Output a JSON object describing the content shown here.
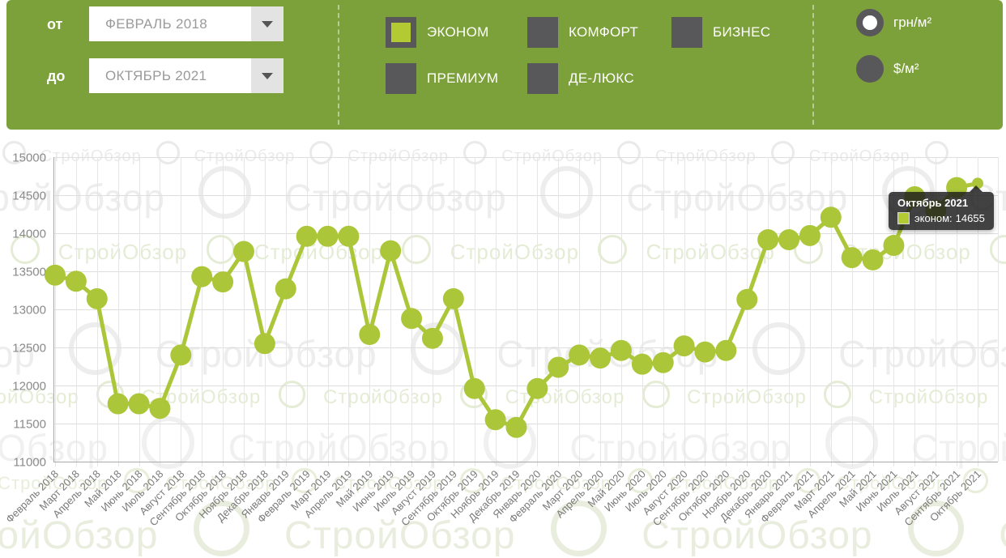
{
  "header": {
    "bg_color": "#7da13a",
    "date_range": {
      "from_label": "от",
      "from_value": "ФЕВРАЛЬ 2018",
      "to_label": "до",
      "to_value": "ОКТЯБРЬ 2021"
    },
    "categories": [
      {
        "label": "ЭКОНОМ",
        "checked": true
      },
      {
        "label": "КОМФОРТ",
        "checked": false
      },
      {
        "label": "БИЗНЕС",
        "checked": false
      },
      {
        "label": "ПРЕМИУМ",
        "checked": false
      },
      {
        "label": "ДЕ-ЛЮКС",
        "checked": false
      }
    ],
    "currencies": [
      {
        "label": "грн/м²",
        "selected": true
      },
      {
        "label": "$/м²",
        "selected": false
      }
    ]
  },
  "watermark": {
    "text": "СтройОбзор"
  },
  "colors": {
    "header_green": "#7da13a",
    "accent_green": "#b4ca33",
    "line_green": "#abc739",
    "dark_gray": "#58585b",
    "grid": "#e0e0e0",
    "axis_text": "#828282"
  },
  "chart_data": {
    "type": "line",
    "title": "",
    "xlabel": "",
    "ylabel": "",
    "ylim": [
      11000,
      15000
    ],
    "ytick_step": 500,
    "grid": true,
    "categories": [
      "Февраль 2018",
      "Март 2018",
      "Апрель 2018",
      "Май 2018",
      "Июнь 2018",
      "Июль 2018",
      "Август 2018",
      "Сентябрь 2018",
      "Октябрь 2018",
      "Ноябрь 2018",
      "Декабрь 2018",
      "Январь 2019",
      "Февраль 2019",
      "Март 2019",
      "Апрель 2019",
      "Май 2019",
      "Июнь 2019",
      "Июль 2019",
      "Август 2019",
      "Сентябрь 2019",
      "Октябрь 2019",
      "Ноябрь 2019",
      "Декабрь 2019",
      "Январь 2020",
      "Февраль 2020",
      "Март 2020",
      "Апрель 2020",
      "Май 2020",
      "Июнь 2020",
      "Июль 2020",
      "Август 2020",
      "Сентябрь 2020",
      "Октябрь 2020",
      "Ноябрь 2020",
      "Декабрь 2020",
      "Январь 2021",
      "Февраль 2021",
      "Март 2021",
      "Апрель 2021",
      "Май 2021",
      "Июнь 2021",
      "Июль 2021",
      "Август 2021",
      "Сентябрь 2021",
      "Октябрь 2021"
    ],
    "series": [
      {
        "name": "эконом",
        "color": "#abc739",
        "values": [
          13450,
          13370,
          13140,
          11760,
          11760,
          11700,
          12400,
          13430,
          13360,
          13760,
          12550,
          13270,
          13960,
          13960,
          13960,
          12670,
          13770,
          12880,
          12620,
          13140,
          11960,
          11550,
          11450,
          11960,
          12240,
          12400,
          12360,
          12460,
          12280,
          12300,
          12520,
          12440,
          12460,
          13130,
          13915,
          13915,
          13970,
          14210,
          13680,
          13650,
          13840,
          14480,
          14300,
          14600,
          14655
        ]
      }
    ],
    "tooltip": {
      "title": "Октябрь 2021",
      "series": "эконом:",
      "value": "14655",
      "point_index": 44
    }
  }
}
